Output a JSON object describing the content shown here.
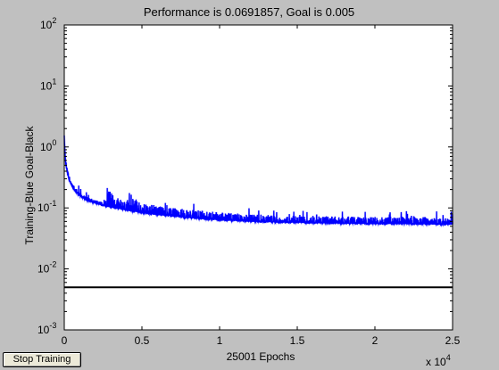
{
  "window": {
    "stop_button_label": "Stop Training"
  },
  "chart_data": {
    "type": "line",
    "title": "Performance is 0.0691857, Goal is 0.005",
    "xlabel": "25001 Epochs",
    "ylabel": "Training-Blue  Goal-Black",
    "x_multiplier_label": "x 10",
    "x_multiplier_exponent": "4",
    "xlim": [
      0,
      25001
    ],
    "ylim": [
      0.001,
      100
    ],
    "yscale": "log",
    "grid": false,
    "x_ticks": [
      {
        "value": 0,
        "label": "0"
      },
      {
        "value": 5000,
        "label": "0.5"
      },
      {
        "value": 10000,
        "label": "1"
      },
      {
        "value": 15000,
        "label": "1.5"
      },
      {
        "value": 20000,
        "label": "2"
      },
      {
        "value": 25000,
        "label": "2.5"
      }
    ],
    "y_ticks": [
      {
        "value": 100,
        "base": "10",
        "exp": "2"
      },
      {
        "value": 10,
        "base": "10",
        "exp": "1"
      },
      {
        "value": 1,
        "base": "10",
        "exp": "0"
      },
      {
        "value": 0.1,
        "base": "10",
        "exp": "-1"
      },
      {
        "value": 0.01,
        "base": "10",
        "exp": "-2"
      },
      {
        "value": 0.001,
        "base": "10",
        "exp": "-3"
      }
    ],
    "series": [
      {
        "name": "Training",
        "color": "#0000ff",
        "lower_envelope": {
          "x": [
            0,
            50,
            100,
            200,
            300,
            500,
            750,
            1000,
            1500,
            2000,
            2500,
            3000,
            4000,
            5000,
            6000,
            7000,
            8000,
            9000,
            10000,
            12000,
            14000,
            16000,
            18000,
            20000,
            22000,
            24000,
            25001
          ],
          "y": [
            1.5,
            0.7,
            0.5,
            0.36,
            0.29,
            0.22,
            0.18,
            0.155,
            0.13,
            0.118,
            0.108,
            0.1,
            0.09,
            0.082,
            0.076,
            0.072,
            0.068,
            0.065,
            0.062,
            0.059,
            0.057,
            0.056,
            0.055,
            0.054,
            0.054,
            0.053,
            0.053
          ]
        },
        "upper_envelope": {
          "x": [
            0,
            50,
            100,
            200,
            300,
            500,
            750,
            1000,
            1500,
            2000,
            2500,
            2900,
            3200,
            3500,
            4000,
            4300,
            5000,
            6000,
            7000,
            8000,
            9000,
            10000,
            12000,
            14000,
            16000,
            18000,
            20000,
            22000,
            24000,
            25001
          ],
          "y": [
            1.8,
            0.9,
            0.62,
            0.44,
            0.35,
            0.26,
            0.21,
            0.18,
            0.15,
            0.135,
            0.125,
            0.22,
            0.19,
            0.14,
            0.13,
            0.16,
            0.12,
            0.11,
            0.1,
            0.095,
            0.09,
            0.085,
            0.08,
            0.075,
            0.075,
            0.073,
            0.072,
            0.072,
            0.071,
            0.07
          ]
        }
      },
      {
        "name": "Goal",
        "color": "#000000",
        "x": [
          0,
          25001
        ],
        "y": [
          0.005,
          0.005
        ]
      }
    ]
  }
}
